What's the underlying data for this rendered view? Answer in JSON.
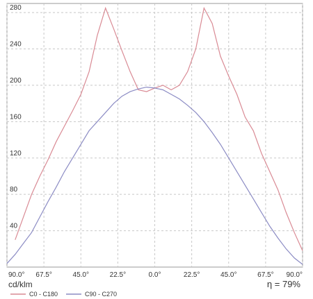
{
  "chart_data": {
    "type": "line",
    "y_unit": "cd/klm",
    "annotation": "η = 79%",
    "x": [
      -90,
      -85,
      -80,
      -75,
      -70,
      -65,
      -60,
      -55,
      -50,
      -45,
      -40,
      -35,
      -30,
      -25,
      -20,
      -15,
      -10,
      -5,
      0,
      5,
      10,
      15,
      20,
      25,
      30,
      35,
      40,
      45,
      50,
      55,
      60,
      65,
      70,
      75,
      80,
      85,
      90
    ],
    "series": [
      {
        "name": "C0 - C180",
        "color": "#d98a94",
        "values": [
          null,
          30,
          55,
          80,
          100,
          118,
          138,
          155,
          172,
          190,
          215,
          255,
          285,
          262,
          238,
          215,
          195,
          193,
          197,
          200,
          195,
          200,
          215,
          240,
          285,
          268,
          232,
          210,
          190,
          165,
          150,
          125,
          105,
          85,
          60,
          38,
          18
        ]
      },
      {
        "name": "C90 - C270",
        "color": "#8c8cc4",
        "values": [
          4,
          14,
          26,
          38,
          55,
          72,
          88,
          105,
          120,
          135,
          150,
          160,
          170,
          180,
          188,
          193,
          196,
          198,
          197,
          195,
          190,
          185,
          178,
          170,
          160,
          148,
          135,
          120,
          105,
          90,
          75,
          60,
          45,
          32,
          20,
          10,
          3
        ]
      }
    ],
    "xlim": [
      -90,
      90
    ],
    "xticks": [
      {
        "value": -90,
        "label": "90.0°"
      },
      {
        "value": -67.5,
        "label": "67.5°"
      },
      {
        "value": -45,
        "label": "45.0°"
      },
      {
        "value": -22.5,
        "label": "22.5°"
      },
      {
        "value": 0,
        "label": "0.0°"
      },
      {
        "value": 22.5,
        "label": "22.5°"
      },
      {
        "value": 45,
        "label": "45.0°"
      },
      {
        "value": 67.5,
        "label": "67.5°"
      },
      {
        "value": 90,
        "label": "90.0°"
      }
    ],
    "ylim": [
      0,
      290
    ],
    "yticks": [
      40,
      80,
      120,
      160,
      200,
      240,
      280
    ],
    "grid": true
  }
}
